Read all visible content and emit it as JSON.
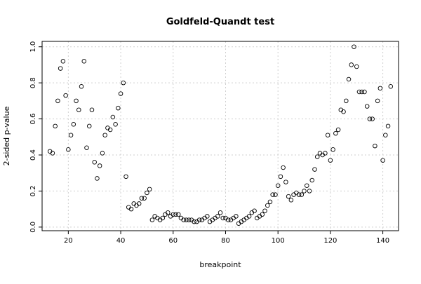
{
  "chart_data": {
    "type": "scatter",
    "title": "Goldfeld-Quandt test",
    "xlabel": "breakpoint",
    "ylabel": "2-sided p-value",
    "xlim": [
      10,
      146
    ],
    "ylim": [
      -0.02,
      1.03
    ],
    "x_ticks": [
      20,
      40,
      60,
      80,
      100,
      120,
      140
    ],
    "x_tick_labels": [
      "20",
      "40",
      "60",
      "80",
      "100",
      "120",
      "140"
    ],
    "y_ticks": [
      0.0,
      0.2,
      0.4,
      0.6,
      0.8,
      1.0
    ],
    "y_tick_labels": [
      "0.0",
      "0.2",
      "0.4",
      "0.6",
      "0.8",
      "1.0"
    ],
    "grid": true,
    "marker": "open-circle",
    "colors": {
      "points": "#000000",
      "grid": "#cfcfcf",
      "frame": "#000000"
    },
    "points": [
      [
        13,
        0.42
      ],
      [
        14,
        0.41
      ],
      [
        15,
        0.56
      ],
      [
        16,
        0.7
      ],
      [
        17,
        0.88
      ],
      [
        18,
        0.92
      ],
      [
        19,
        0.73
      ],
      [
        20,
        0.43
      ],
      [
        21,
        0.51
      ],
      [
        22,
        0.57
      ],
      [
        23,
        0.7
      ],
      [
        24,
        0.65
      ],
      [
        25,
        0.78
      ],
      [
        26,
        0.92
      ],
      [
        27,
        0.44
      ],
      [
        28,
        0.56
      ],
      [
        29,
        0.65
      ],
      [
        30,
        0.36
      ],
      [
        31,
        0.27
      ],
      [
        32,
        0.34
      ],
      [
        33,
        0.41
      ],
      [
        34,
        0.51
      ],
      [
        35,
        0.55
      ],
      [
        36,
        0.54
      ],
      [
        37,
        0.61
      ],
      [
        38,
        0.57
      ],
      [
        39,
        0.66
      ],
      [
        40,
        0.74
      ],
      [
        41,
        0.8
      ],
      [
        42,
        0.28
      ],
      [
        43,
        0.11
      ],
      [
        44,
        0.1
      ],
      [
        45,
        0.13
      ],
      [
        46,
        0.12
      ],
      [
        47,
        0.13
      ],
      [
        48,
        0.16
      ],
      [
        49,
        0.16
      ],
      [
        50,
        0.19
      ],
      [
        51,
        0.21
      ],
      [
        52,
        0.04
      ],
      [
        53,
        0.06
      ],
      [
        54,
        0.05
      ],
      [
        55,
        0.04
      ],
      [
        56,
        0.05
      ],
      [
        57,
        0.07
      ],
      [
        58,
        0.08
      ],
      [
        59,
        0.06
      ],
      [
        60,
        0.07
      ],
      [
        61,
        0.07
      ],
      [
        62,
        0.07
      ],
      [
        63,
        0.05
      ],
      [
        64,
        0.04
      ],
      [
        65,
        0.04
      ],
      [
        66,
        0.04
      ],
      [
        67,
        0.04
      ],
      [
        68,
        0.03
      ],
      [
        69,
        0.03
      ],
      [
        70,
        0.04
      ],
      [
        71,
        0.04
      ],
      [
        72,
        0.05
      ],
      [
        73,
        0.06
      ],
      [
        74,
        0.03
      ],
      [
        75,
        0.04
      ],
      [
        76,
        0.05
      ],
      [
        77,
        0.06
      ],
      [
        78,
        0.08
      ],
      [
        79,
        0.05
      ],
      [
        80,
        0.05
      ],
      [
        81,
        0.04
      ],
      [
        82,
        0.04
      ],
      [
        83,
        0.05
      ],
      [
        84,
        0.06
      ],
      [
        85,
        0.02
      ],
      [
        86,
        0.03
      ],
      [
        87,
        0.04
      ],
      [
        88,
        0.05
      ],
      [
        89,
        0.06
      ],
      [
        90,
        0.08
      ],
      [
        91,
        0.09
      ],
      [
        92,
        0.05
      ],
      [
        93,
        0.06
      ],
      [
        94,
        0.07
      ],
      [
        95,
        0.09
      ],
      [
        96,
        0.12
      ],
      [
        97,
        0.14
      ],
      [
        98,
        0.18
      ],
      [
        99,
        0.18
      ],
      [
        100,
        0.23
      ],
      [
        101,
        0.28
      ],
      [
        102,
        0.33
      ],
      [
        103,
        0.25
      ],
      [
        104,
        0.17
      ],
      [
        105,
        0.15
      ],
      [
        106,
        0.18
      ],
      [
        107,
        0.19
      ],
      [
        108,
        0.18
      ],
      [
        109,
        0.18
      ],
      [
        110,
        0.2
      ],
      [
        111,
        0.23
      ],
      [
        112,
        0.2
      ],
      [
        113,
        0.26
      ],
      [
        114,
        0.32
      ],
      [
        115,
        0.39
      ],
      [
        116,
        0.41
      ],
      [
        117,
        0.4
      ],
      [
        118,
        0.41
      ],
      [
        119,
        0.51
      ],
      [
        120,
        0.37
      ],
      [
        121,
        0.43
      ],
      [
        122,
        0.52
      ],
      [
        123,
        0.54
      ],
      [
        124,
        0.65
      ],
      [
        125,
        0.64
      ],
      [
        126,
        0.7
      ],
      [
        127,
        0.82
      ],
      [
        128,
        0.9
      ],
      [
        129,
        1.0
      ],
      [
        130,
        0.89
      ],
      [
        131,
        0.75
      ],
      [
        132,
        0.75
      ],
      [
        133,
        0.75
      ],
      [
        134,
        0.67
      ],
      [
        135,
        0.6
      ],
      [
        136,
        0.6
      ],
      [
        137,
        0.45
      ],
      [
        138,
        0.7
      ],
      [
        139,
        0.77
      ],
      [
        140,
        0.37
      ],
      [
        141,
        0.51
      ],
      [
        142,
        0.56
      ],
      [
        143,
        0.78
      ]
    ]
  }
}
